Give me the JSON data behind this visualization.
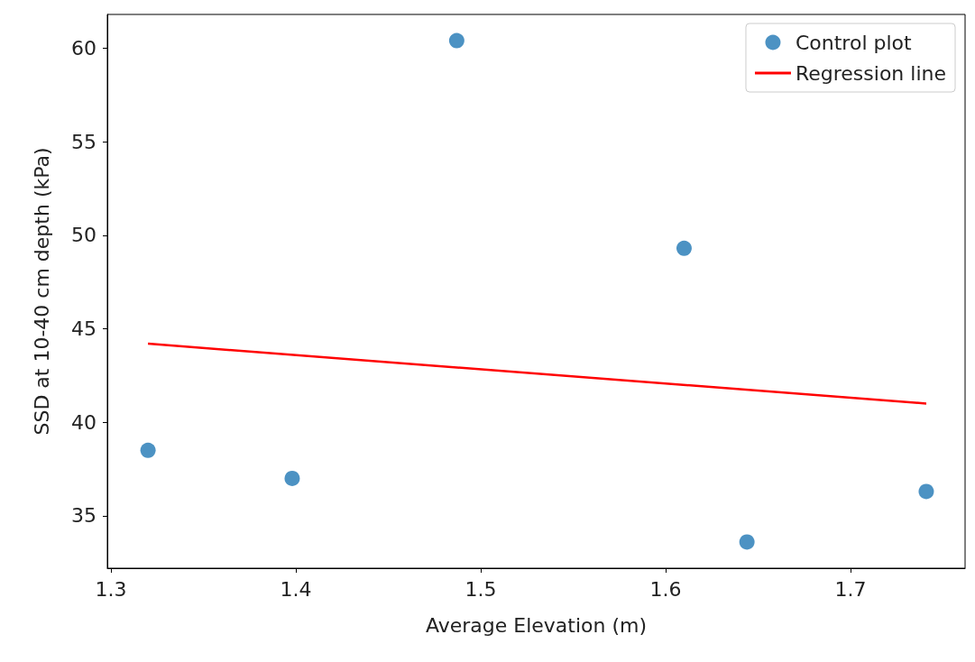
{
  "chart_data": {
    "type": "scatter",
    "xlabel": "Average Elevation (m)",
    "ylabel": "SSD at 10-40 cm depth (kPa)",
    "xlim": [
      1.298,
      1.762
    ],
    "xticks": [
      1.3,
      1.4,
      1.5,
      1.6,
      1.7
    ],
    "ylim": [
      32.2,
      61.8
    ],
    "yticks": [
      35,
      40,
      45,
      50,
      55,
      60
    ],
    "grid": false,
    "legend": "top right",
    "series": [
      {
        "name": "Control plot",
        "marker": "circle",
        "color": "#1f77b4",
        "x": [
          1.32,
          1.398,
          1.487,
          1.61,
          1.644,
          1.741
        ],
        "values": [
          38.5,
          37.0,
          60.4,
          49.3,
          33.6,
          36.3
        ]
      },
      {
        "name": "Regression line",
        "type": "line",
        "color": "#ff0000",
        "line_style": "solid",
        "x": [
          1.32,
          1.741
        ],
        "values": [
          44.2,
          41.0
        ]
      }
    ]
  }
}
